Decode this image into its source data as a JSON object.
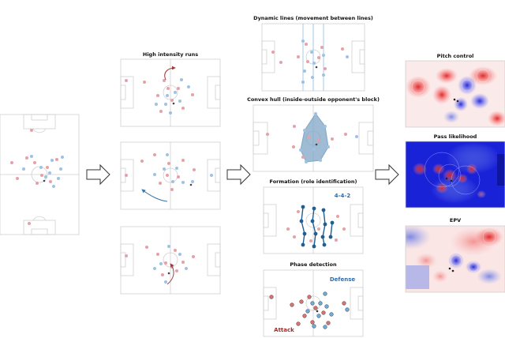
{
  "panels": {
    "high_intensity_runs": "High intensity runs",
    "dynamic_lines": "Dynamic lines (movement between lines)",
    "convex_hull": "Convex hull (inside-outside opponent's block)",
    "formation": "Formation (role identification)",
    "formation_label": "4-4-2",
    "phase_detection": "Phase detection",
    "defense_label": "Defense",
    "attack_label": "Attack",
    "pitch_control": "Pitch control",
    "pass_likelihood": "Pass likelihood",
    "epv": "EPV"
  },
  "colors": {
    "team_red": "#e8a0a8",
    "team_blue": "#9ec2e4",
    "formation_blue": "#1f5f94",
    "defense_text": "#2a6fb0",
    "attack_text": "#9b2d2d",
    "arrow": "#444444"
  }
}
